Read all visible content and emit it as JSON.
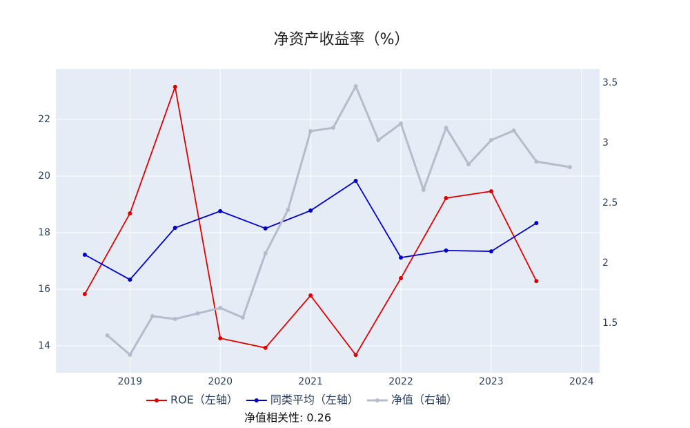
{
  "chart_data": {
    "type": "line",
    "title": "净资产收益率（%）",
    "annotation": "净值相关性: 0.26",
    "xlim": [
      2018.18,
      2024.2
    ],
    "xticks": [
      2019,
      2020,
      2021,
      2022,
      2023,
      2024
    ],
    "ylim": [
      13.05,
      23.78
    ],
    "yticks": [
      14,
      16,
      18,
      20,
      22
    ],
    "y2lim": [
      1.086,
      3.615
    ],
    "y2ticks": [
      1.5,
      2,
      2.5,
      3,
      3.5
    ],
    "grid": true,
    "legend": "bottom",
    "series": [
      {
        "name": "ROE（左轴）",
        "color": "#e00000",
        "x": [
          2018.5,
          2019,
          2019.5,
          2020,
          2020.5,
          2021,
          2021.5,
          2022,
          2022.5,
          2023,
          2023.5
        ],
        "values": [
          15.83,
          18.68,
          23.15,
          14.27,
          13.93,
          15.78,
          13.68,
          16.39,
          19.22,
          19.46,
          16.29
        ]
      },
      {
        "name": "同类平均（左轴）",
        "color": "#0000cc",
        "x": [
          2018.5,
          2019,
          2019.5,
          2020,
          2020.5,
          2021,
          2021.5,
          2022,
          2022.5,
          2023,
          2023.5
        ],
        "values": [
          17.22,
          16.34,
          18.17,
          18.76,
          18.15,
          18.78,
          19.83,
          17.12,
          17.37,
          17.34,
          18.34
        ]
      },
      {
        "name": "净值（右轴）",
        "color": "#b4bccb",
        "axis": "y2",
        "x": [
          2018.75,
          2019,
          2019.25,
          2019.5,
          2019.75,
          2020,
          2020.25,
          2020.5,
          2020.75,
          2021,
          2021.25,
          2021.5,
          2021.75,
          2022,
          2022.25,
          2022.5,
          2022.75,
          2023,
          2023.25,
          2023.5,
          2023.87
        ],
        "values": [
          1.397,
          1.236,
          1.557,
          1.534,
          1.58,
          1.626,
          1.546,
          2.08,
          2.443,
          3.098,
          3.126,
          3.471,
          3.023,
          3.161,
          2.609,
          3.126,
          2.822,
          3.023,
          3.103,
          2.845,
          2.799
        ]
      }
    ]
  }
}
